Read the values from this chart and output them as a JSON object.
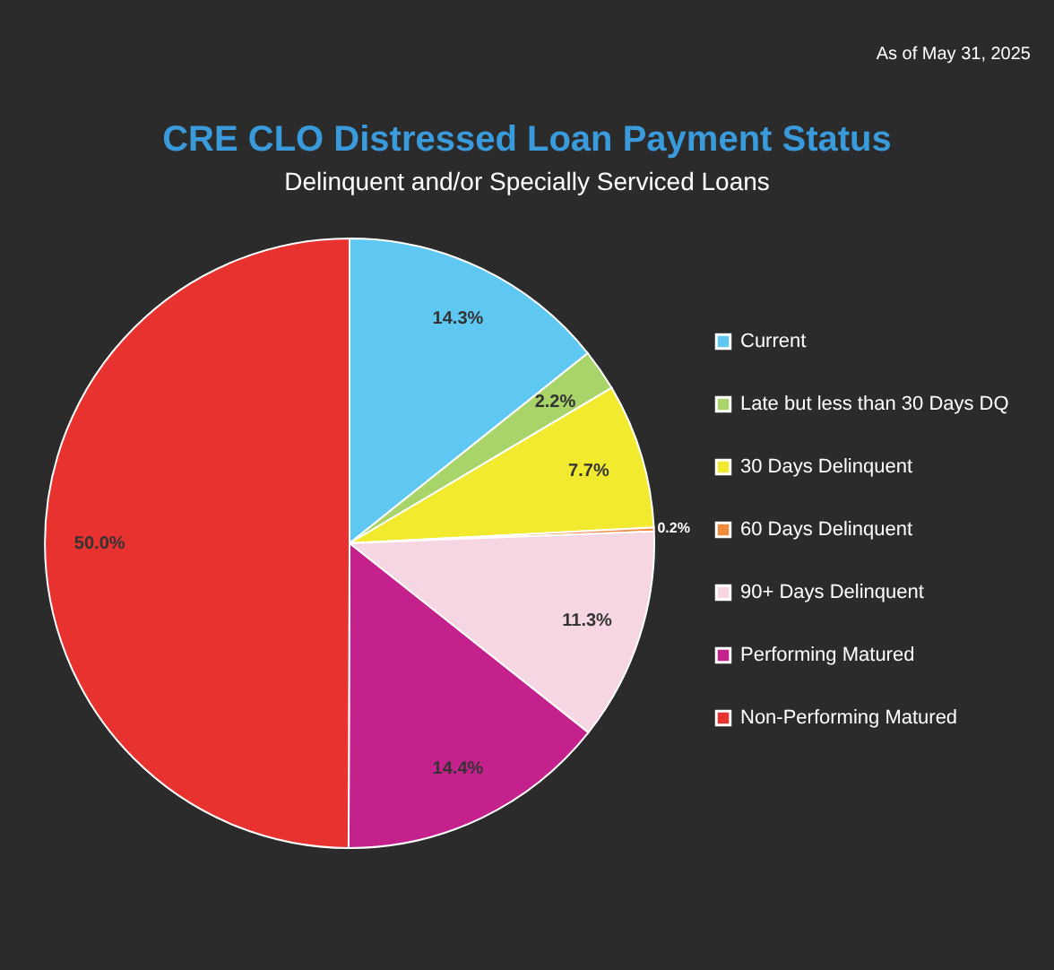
{
  "chart_data": {
    "type": "pie",
    "title": "CRE CLO Distressed Loan Payment Status",
    "subtitle": "Delinquent and/or Specially Serviced Loans",
    "annotations": [
      "As of May 31, 2025"
    ],
    "categories": [
      "Current",
      "Late but less than 30 Days DQ",
      "30 Days Delinquent",
      "60 Days Delinquent",
      "90+ Days Delinquent",
      "Performing Matured",
      "Non-Performing Matured"
    ],
    "values": [
      14.3,
      2.2,
      7.7,
      0.2,
      11.3,
      14.4,
      50.0
    ],
    "value_labels": [
      "14.3%",
      "2.2%",
      "7.7%",
      "0.2%",
      "11.3%",
      "14.4%",
      "50.0%"
    ],
    "colors": [
      "#5ec8f2",
      "#a9d46a",
      "#f2ea2e",
      "#f08a3c",
      "#f6d6e2",
      "#c4218c",
      "#e8322f"
    ],
    "legend": "right"
  }
}
